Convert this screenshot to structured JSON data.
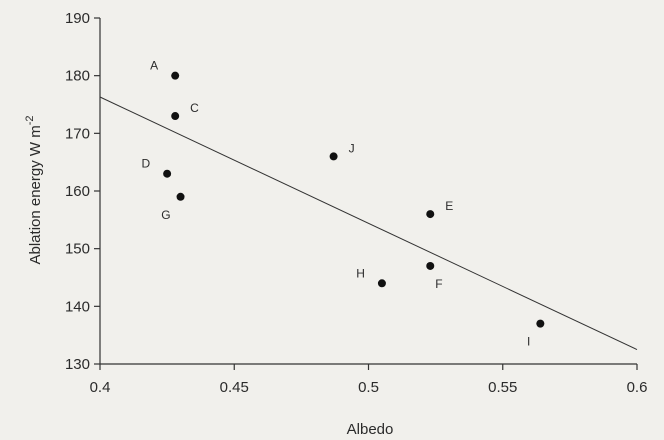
{
  "chart_data": {
    "type": "scatter",
    "xlabel": "Albedo",
    "ylabel_main": "Ablation energy  W m",
    "ylabel_sup": "-2",
    "xlim": [
      0.4,
      0.6
    ],
    "ylim": [
      130,
      190
    ],
    "x_ticks": [
      0.4,
      0.45,
      0.5,
      0.55,
      0.6
    ],
    "x_tick_labels": [
      "0.4",
      "0.45",
      "0.5",
      "0.55",
      "0.6"
    ],
    "y_ticks": [
      130,
      140,
      150,
      160,
      170,
      180,
      190
    ],
    "y_tick_labels": [
      "130",
      "140",
      "150",
      "160",
      "170",
      "180",
      "190"
    ],
    "grid": false,
    "points": [
      {
        "label": "A",
        "x": 0.428,
        "y": 180,
        "label_pos": "upper-left"
      },
      {
        "label": "C",
        "x": 0.428,
        "y": 173,
        "label_pos": "upper-right"
      },
      {
        "label": "D",
        "x": 0.425,
        "y": 163,
        "label_pos": "upper-left"
      },
      {
        "label": "G",
        "x": 0.43,
        "y": 159,
        "label_pos": "lower-left"
      },
      {
        "label": "J",
        "x": 0.487,
        "y": 166,
        "label_pos": "upper-right"
      },
      {
        "label": "E",
        "x": 0.523,
        "y": 156,
        "label_pos": "upper-right"
      },
      {
        "label": "F",
        "x": 0.523,
        "y": 147,
        "label_pos": "lower-right"
      },
      {
        "label": "H",
        "x": 0.505,
        "y": 144,
        "label_pos": "upper-left"
      },
      {
        "label": "I",
        "x": 0.564,
        "y": 137,
        "label_pos": "lower-left"
      }
    ],
    "trendline": {
      "x": [
        0.4,
        0.6
      ],
      "y": [
        176.3,
        132.5
      ]
    },
    "colors": {
      "marker": "#111111",
      "line": "#333333",
      "axis": "#333333",
      "background": "#f1f0ec"
    }
  }
}
